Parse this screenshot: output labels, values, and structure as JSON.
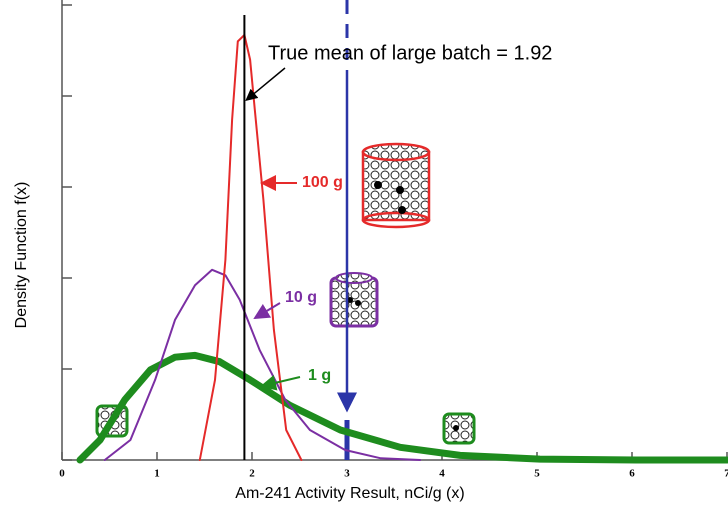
{
  "chart_data": {
    "type": "line",
    "x_label": "Am-241 Activity Result, nCi/g (x)",
    "y_label": "Density Function f(x)",
    "xlim": [
      0,
      7
    ],
    "xticks": [
      0,
      1,
      2,
      3,
      4,
      5,
      6,
      7
    ],
    "ylim": [
      0,
      5
    ],
    "yticks": [
      0,
      1,
      2,
      3,
      4,
      5
    ],
    "mean": 1.92,
    "mean_label": "True mean of large batch = 1.92",
    "reference_x": 3,
    "series": [
      {
        "name": "1 g",
        "color": "#1e8c1e",
        "x": [
          0.19,
          0.4,
          0.66,
          0.93,
          1.19,
          1.4,
          1.66,
          1.98,
          2.4,
          2.93,
          3.56,
          4.19,
          5.03,
          6.08,
          7
        ],
        "values": [
          0,
          0.22,
          0.66,
          0.99,
          1.13,
          1.15,
          1.08,
          0.88,
          0.6,
          0.33,
          0.14,
          0.05,
          0.01,
          0,
          0
        ]
      },
      {
        "name": "10 g",
        "color": "#7b2fa3",
        "x": [
          0.45,
          0.72,
          0.98,
          1.19,
          1.4,
          1.58,
          1.72,
          1.87,
          2.08,
          2.35,
          2.61,
          2.98,
          3.35,
          3.77
        ],
        "values": [
          0,
          0.22,
          0.88,
          1.54,
          1.92,
          2.09,
          2.03,
          1.76,
          1.21,
          0.66,
          0.33,
          0.11,
          0.02,
          0
        ]
      },
      {
        "name": "100 g",
        "color": "#e52a2a",
        "x": [
          1.45,
          1.61,
          1.72,
          1.79,
          1.85,
          1.92,
          1.98,
          2.03,
          2.12,
          2.23,
          2.36,
          2.52
        ],
        "values": [
          0,
          0.88,
          2.2,
          3.74,
          4.6,
          4.67,
          4.4,
          3.85,
          2.86,
          1.43,
          0.33,
          0
        ]
      }
    ]
  }
}
